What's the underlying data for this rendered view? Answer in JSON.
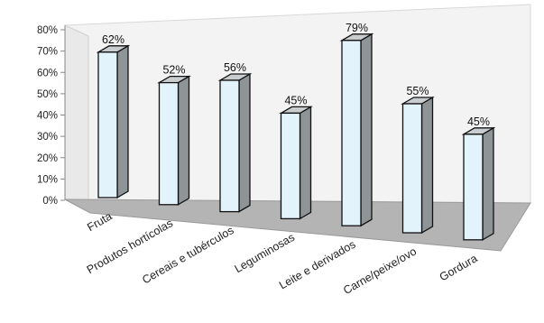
{
  "chart_data": {
    "type": "bar",
    "categories": [
      "Fruta",
      "Produtos hortícolas",
      "Cereais e tubérculos",
      "Leguminosas",
      "Leite e derivados",
      "Carne/peixe/ovo",
      "Gordura"
    ],
    "values": [
      62,
      52,
      56,
      45,
      79,
      55,
      45
    ],
    "data_labels": [
      "62%",
      "52%",
      "56%",
      "45%",
      "79%",
      "55%",
      "45%"
    ],
    "ytick_labels": [
      "0%",
      "10%",
      "20%",
      "30%",
      "40%",
      "50%",
      "60%",
      "70%",
      "80%"
    ],
    "ylim": [
      0,
      80
    ],
    "title": "",
    "xlabel": "",
    "ylabel": "",
    "grid": false,
    "legend": "none",
    "colors": {
      "bar_front": "#e3f3fb",
      "bar_side": "#8f9496",
      "bar_top": "#c9cdd0",
      "bar_outline": "#111111",
      "back_wall": "#f3f3f3",
      "floor": "#b4b4b4"
    }
  }
}
